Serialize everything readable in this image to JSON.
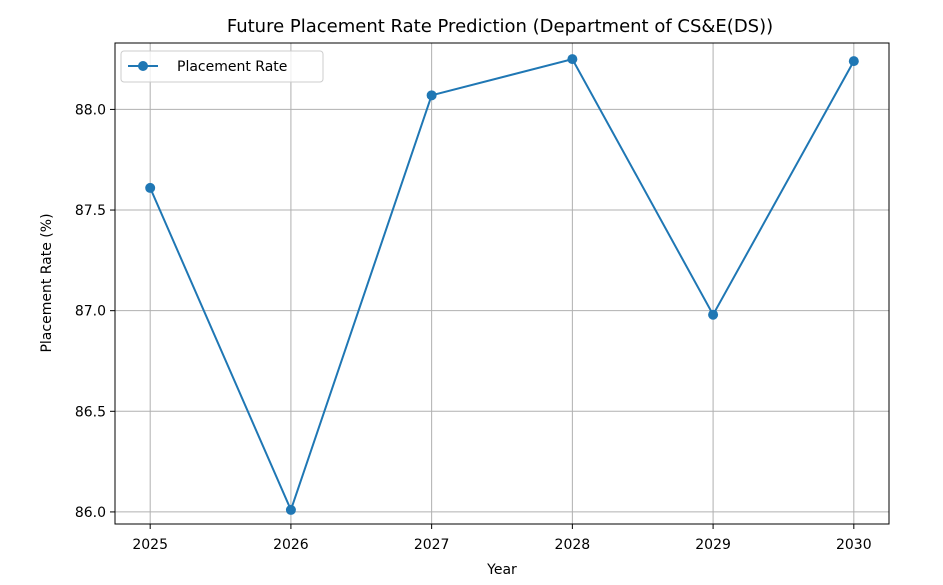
{
  "chart_data": {
    "type": "line",
    "title": "Future Placement Rate Prediction (Department of CS&E(DS))",
    "xlabel": "Year",
    "ylabel": "Placement Rate (%)",
    "x": [
      2025,
      2026,
      2027,
      2028,
      2029,
      2030
    ],
    "x_tick_labels": [
      "2025",
      "2026",
      "2027",
      "2028",
      "2029",
      "2030"
    ],
    "y_ticks": [
      86.0,
      86.5,
      87.0,
      87.5,
      88.0
    ],
    "y_tick_labels": [
      "86.0",
      "86.5",
      "87.0",
      "87.5",
      "88.0"
    ],
    "xlim": [
      2024.75,
      2030.25
    ],
    "ylim": [
      85.94,
      88.33
    ],
    "grid": true,
    "legend_position": "upper-left",
    "series": [
      {
        "name": "Placement Rate",
        "color": "#1f77b4",
        "marker": "circle",
        "values": [
          87.61,
          86.01,
          88.07,
          88.25,
          86.98,
          88.24
        ]
      }
    ]
  }
}
